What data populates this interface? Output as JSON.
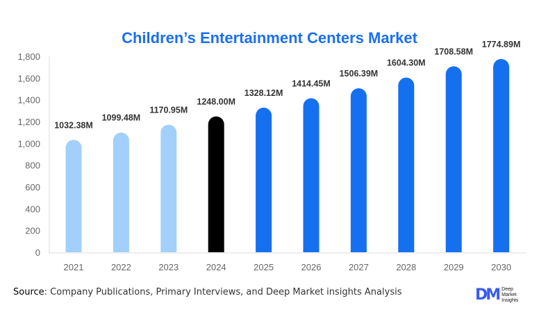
{
  "chart_data": {
    "type": "bar",
    "title": "Children’s Entertainment Centers Market",
    "categories": [
      "2021",
      "2022",
      "2023",
      "2024",
      "2025",
      "2026",
      "2027",
      "2028",
      "2029",
      "2030"
    ],
    "values": [
      1032.38,
      1099.48,
      1170.95,
      1248.0,
      1328.12,
      1414.45,
      1506.39,
      1604.3,
      1708.58,
      1774.89
    ],
    "data_labels": [
      "1032.38M",
      "1099.48M",
      "1170.95M",
      "1248.00M",
      "1328.12M",
      "1414.45M",
      "1506.39M",
      "1604.30M",
      "1708.58M",
      "1774.89M"
    ],
    "bar_colors": [
      "#a3cffb",
      "#a3cffb",
      "#a3cffb",
      "#000000",
      "#1570ef",
      "#1570ef",
      "#1570ef",
      "#1570ef",
      "#1570ef",
      "#1570ef"
    ],
    "yticks": [
      "0",
      "200",
      "400",
      "600",
      "800",
      "1,000",
      "1,200",
      "1,400",
      "1,600",
      "1,800"
    ],
    "ylim": [
      0,
      1800
    ],
    "xlabel": "",
    "ylabel": "",
    "grid": false,
    "title_color": "#1a6ff0"
  },
  "footer": {
    "source_label": "Source",
    "source_text": ": Company Publications, Primary Interviews, and Deep Market insights Analysis",
    "logo_text": "Deep Market Insights"
  }
}
